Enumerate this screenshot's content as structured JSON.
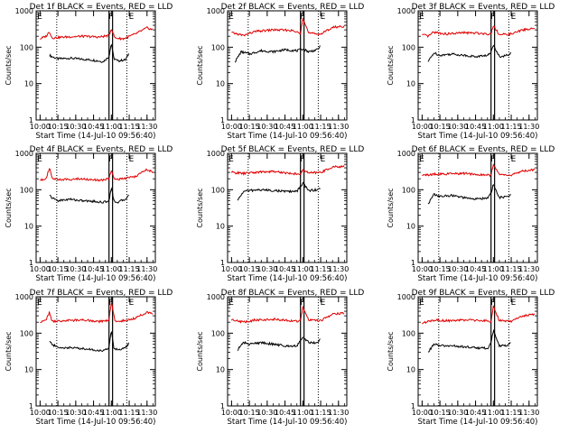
{
  "figure": {
    "panel_title_suffix": "BLACK = Events, RED = LLD",
    "xlabel": "Start Time (14-Jul-10 09:56:40)",
    "ylabel": "Counts/sec",
    "x_tick_labels": [
      "10:00",
      "10:15",
      "10:30",
      "10:45",
      "11:00",
      "11:15",
      "11:30"
    ],
    "y_tick_labels": [
      "1",
      "10",
      "100",
      "1000"
    ],
    "region_marker_labels": [
      "F",
      "F",
      "E"
    ],
    "colors": {
      "events": "#000000",
      "lld": "#e00000",
      "axes": "#000000"
    }
  },
  "chart_data": [
    {
      "type": "line",
      "title": "Det 1f BLACK = Events, RED = LLD",
      "xlabel": "Start Time (14-Jul-10 09:56:40)",
      "ylabel": "Counts/sec",
      "y_scale": "log",
      "ylim": [
        1,
        1000
      ],
      "xlim": [
        "09:56:40",
        "11:37:00"
      ],
      "series": [
        {
          "name": "Events",
          "color": "#000000",
          "x": [
            "10:08",
            "10:10",
            "10:15",
            "10:25",
            "10:35",
            "10:45",
            "10:53",
            "10:58",
            "11:00",
            "11:02",
            "11:05",
            "11:12",
            "11:15"
          ],
          "y": [
            60,
            55,
            48,
            50,
            47,
            44,
            40,
            55,
            130,
            50,
            42,
            45,
            70
          ]
        },
        {
          "name": "LLD",
          "color": "#e00000",
          "x": [
            "10:00",
            "10:05",
            "10:08",
            "10:10",
            "10:20",
            "10:35",
            "10:50",
            "10:58",
            "11:00",
            "11:03",
            "11:10",
            "11:20",
            "11:30",
            "11:35"
          ],
          "y": [
            170,
            200,
            270,
            180,
            190,
            200,
            190,
            210,
            320,
            180,
            170,
            230,
            340,
            300
          ]
        }
      ],
      "markers": [
        {
          "label": "F",
          "x": [
            "10:58",
            "11:01"
          ]
        },
        {
          "label": "E",
          "x": [
            "10:14",
            "11:13"
          ]
        }
      ]
    },
    {
      "type": "line",
      "title": "Det 2f BLACK = Events, RED = LLD",
      "xlabel": "Start Time (14-Jul-10 09:56:40)",
      "ylabel": "Counts/sec",
      "y_scale": "log",
      "ylim": [
        1,
        1000
      ],
      "xlim": [
        "09:56:40",
        "11:37:00"
      ],
      "series": [
        {
          "name": "Events",
          "color": "#000000",
          "x": [
            "10:03",
            "10:08",
            "10:15",
            "10:25",
            "10:35",
            "10:45",
            "10:55",
            "11:00",
            "11:05",
            "11:12",
            "11:15"
          ],
          "y": [
            40,
            75,
            65,
            80,
            75,
            85,
            80,
            90,
            75,
            85,
            110
          ]
        },
        {
          "name": "LLD",
          "color": "#e00000",
          "x": [
            "10:00",
            "10:05",
            "10:10",
            "10:20",
            "10:35",
            "10:50",
            "10:58",
            "11:00",
            "11:05",
            "11:15",
            "11:25",
            "11:35"
          ],
          "y": [
            250,
            230,
            210,
            270,
            300,
            290,
            240,
            650,
            240,
            230,
            350,
            380
          ]
        }
      ],
      "markers": [
        {
          "label": "F",
          "x": [
            "10:58",
            "11:01"
          ]
        },
        {
          "label": "E",
          "x": [
            "10:14",
            "11:13"
          ]
        }
      ]
    },
    {
      "type": "line",
      "title": "Det 3f BLACK = Events, RED = LLD",
      "xlabel": "Start Time (14-Jul-10 09:56:40)",
      "ylabel": "Counts/sec",
      "y_scale": "log",
      "ylim": [
        1,
        1000
      ],
      "xlim": [
        "09:56:40",
        "11:37:00"
      ],
      "series": [
        {
          "name": "Events",
          "color": "#000000",
          "x": [
            "10:05",
            "10:10",
            "10:15",
            "10:25",
            "10:35",
            "10:45",
            "10:55",
            "10:58",
            "11:00",
            "11:05",
            "11:12",
            "11:15"
          ],
          "y": [
            40,
            70,
            60,
            65,
            60,
            55,
            60,
            70,
            120,
            55,
            60,
            70
          ]
        },
        {
          "name": "LLD",
          "color": "#e00000",
          "x": [
            "10:00",
            "10:05",
            "10:10",
            "10:20",
            "10:35",
            "10:50",
            "10:58",
            "11:00",
            "11:05",
            "11:15",
            "11:25",
            "11:35"
          ],
          "y": [
            220,
            200,
            260,
            230,
            250,
            240,
            230,
            400,
            220,
            230,
            300,
            330
          ]
        }
      ],
      "markers": [
        {
          "label": "F",
          "x": [
            "10:58",
            "11:01"
          ]
        },
        {
          "label": "E",
          "x": [
            "10:14",
            "11:13"
          ]
        }
      ]
    },
    {
      "type": "line",
      "title": "Det 4f BLACK = Events, RED = LLD",
      "xlabel": "Start Time (14-Jul-10 09:56:40)",
      "ylabel": "Counts/sec",
      "y_scale": "log",
      "ylim": [
        1,
        1000
      ],
      "xlim": [
        "09:56:40",
        "11:37:00"
      ],
      "series": [
        {
          "name": "Events",
          "color": "#000000",
          "x": [
            "10:08",
            "10:10",
            "10:15",
            "10:25",
            "10:35",
            "10:45",
            "10:53",
            "10:58",
            "11:00",
            "11:02",
            "11:05",
            "11:12",
            "11:15"
          ],
          "y": [
            70,
            60,
            50,
            55,
            50,
            48,
            45,
            50,
            120,
            50,
            45,
            55,
            80
          ]
        },
        {
          "name": "LLD",
          "color": "#e00000",
          "x": [
            "10:00",
            "10:05",
            "10:08",
            "10:10",
            "10:20",
            "10:35",
            "10:50",
            "10:58",
            "11:00",
            "11:03",
            "11:10",
            "11:20",
            "11:30",
            "11:35"
          ],
          "y": [
            180,
            210,
            400,
            200,
            190,
            200,
            180,
            200,
            350,
            190,
            200,
            230,
            360,
            300
          ]
        }
      ],
      "markers": [
        {
          "label": "F",
          "x": [
            "10:58",
            "11:01"
          ]
        },
        {
          "label": "E",
          "x": [
            "10:14",
            "11:13"
          ]
        }
      ]
    },
    {
      "type": "line",
      "title": "Det 5f BLACK = Events, RED = LLD",
      "xlabel": "Start Time (14-Jul-10 09:56:40)",
      "ylabel": "Counts/sec",
      "y_scale": "log",
      "ylim": [
        1,
        1000
      ],
      "xlim": [
        "09:56:40",
        "11:37:00"
      ],
      "series": [
        {
          "name": "Events",
          "color": "#000000",
          "x": [
            "10:05",
            "10:10",
            "10:15",
            "10:25",
            "10:35",
            "10:45",
            "10:55",
            "11:00",
            "11:05",
            "11:12",
            "11:15"
          ],
          "y": [
            50,
            90,
            95,
            100,
            95,
            90,
            90,
            150,
            95,
            100,
            110
          ]
        },
        {
          "name": "LLD",
          "color": "#e00000",
          "x": [
            "10:00",
            "10:05",
            "10:10",
            "10:20",
            "10:35",
            "10:50",
            "10:58",
            "11:00",
            "11:05",
            "11:15",
            "11:25",
            "11:35"
          ],
          "y": [
            300,
            290,
            280,
            300,
            320,
            280,
            270,
            350,
            290,
            300,
            420,
            440
          ]
        }
      ],
      "markers": [
        {
          "label": "F",
          "x": [
            "10:58",
            "11:01"
          ]
        },
        {
          "label": "E",
          "x": [
            "10:14",
            "11:13"
          ]
        }
      ]
    },
    {
      "type": "line",
      "title": "Det 6f BLACK = Events, RED = LLD",
      "xlabel": "Start Time (14-Jul-10 09:56:40)",
      "ylabel": "Counts/sec",
      "y_scale": "log",
      "ylim": [
        1,
        1000
      ],
      "xlim": [
        "09:56:40",
        "11:37:00"
      ],
      "series": [
        {
          "name": "Events",
          "color": "#000000",
          "x": [
            "10:05",
            "10:10",
            "10:15",
            "10:25",
            "10:35",
            "10:45",
            "10:55",
            "10:58",
            "11:00",
            "11:05",
            "11:12",
            "11:15"
          ],
          "y": [
            40,
            75,
            65,
            70,
            60,
            55,
            60,
            80,
            140,
            60,
            65,
            75
          ]
        },
        {
          "name": "LLD",
          "color": "#e00000",
          "x": [
            "10:00",
            "10:05",
            "10:10",
            "10:20",
            "10:35",
            "10:50",
            "10:58",
            "11:00",
            "11:05",
            "11:15",
            "11:25",
            "11:35"
          ],
          "y": [
            260,
            250,
            270,
            270,
            280,
            260,
            250,
            500,
            260,
            250,
            330,
            360
          ]
        }
      ],
      "markers": [
        {
          "label": "F",
          "x": [
            "10:58",
            "11:01"
          ]
        },
        {
          "label": "E",
          "x": [
            "10:14",
            "11:13"
          ]
        }
      ]
    },
    {
      "type": "line",
      "title": "Det 7f BLACK = Events, RED = LLD",
      "xlabel": "Start Time (14-Jul-10 09:56:40)",
      "ylabel": "Counts/sec",
      "y_scale": "log",
      "ylim": [
        1,
        1000
      ],
      "xlim": [
        "09:56:40",
        "11:37:00"
      ],
      "series": [
        {
          "name": "Events",
          "color": "#000000",
          "x": [
            "10:08",
            "10:10",
            "10:15",
            "10:25",
            "10:35",
            "10:45",
            "10:53",
            "10:58",
            "11:00",
            "11:02",
            "11:05",
            "11:12",
            "11:15"
          ],
          "y": [
            60,
            50,
            40,
            40,
            38,
            35,
            32,
            40,
            120,
            40,
            35,
            40,
            55
          ]
        },
        {
          "name": "LLD",
          "color": "#e00000",
          "x": [
            "10:00",
            "10:05",
            "10:08",
            "10:10",
            "10:20",
            "10:35",
            "10:50",
            "10:58",
            "11:00",
            "11:03",
            "11:10",
            "11:20",
            "11:30",
            "11:35"
          ],
          "y": [
            200,
            230,
            380,
            210,
            220,
            230,
            210,
            230,
            700,
            210,
            220,
            260,
            380,
            350
          ]
        }
      ],
      "markers": [
        {
          "label": "F",
          "x": [
            "10:58",
            "11:01"
          ]
        },
        {
          "label": "E",
          "x": [
            "10:14",
            "11:13"
          ]
        }
      ]
    },
    {
      "type": "line",
      "title": "Det 8f BLACK = Events, RED = LLD",
      "xlabel": "Start Time (14-Jul-10 09:56:40)",
      "ylabel": "Counts/sec",
      "y_scale": "log",
      "ylim": [
        1,
        1000
      ],
      "xlim": [
        "09:56:40",
        "11:37:00"
      ],
      "series": [
        {
          "name": "Events",
          "color": "#000000",
          "x": [
            "10:05",
            "10:10",
            "10:15",
            "10:25",
            "10:35",
            "10:45",
            "10:55",
            "11:00",
            "11:05",
            "11:12",
            "11:15"
          ],
          "y": [
            35,
            55,
            50,
            55,
            50,
            45,
            45,
            80,
            55,
            55,
            70
          ]
        },
        {
          "name": "LLD",
          "color": "#e00000",
          "x": [
            "10:00",
            "10:05",
            "10:10",
            "10:20",
            "10:35",
            "10:50",
            "10:58",
            "11:00",
            "11:05",
            "11:15",
            "11:25",
            "11:35"
          ],
          "y": [
            240,
            220,
            200,
            230,
            240,
            220,
            210,
            500,
            230,
            220,
            330,
            360
          ]
        }
      ],
      "markers": [
        {
          "label": "F",
          "x": [
            "10:58",
            "11:01"
          ]
        },
        {
          "label": "E",
          "x": [
            "10:14",
            "11:13"
          ]
        }
      ]
    },
    {
      "type": "line",
      "title": "Det 9f BLACK = Events, RED = LLD",
      "xlabel": "Start Time (14-Jul-10 09:56:40)",
      "ylabel": "Counts/sec",
      "y_scale": "log",
      "ylim": [
        1,
        1000
      ],
      "xlim": [
        "09:56:40",
        "11:37:00"
      ],
      "series": [
        {
          "name": "Events",
          "color": "#000000",
          "x": [
            "10:05",
            "10:10",
            "10:15",
            "10:25",
            "10:35",
            "10:45",
            "10:55",
            "10:58",
            "11:00",
            "11:05",
            "11:12",
            "11:15"
          ],
          "y": [
            30,
            50,
            45,
            45,
            42,
            40,
            38,
            55,
            120,
            45,
            45,
            60
          ]
        },
        {
          "name": "LLD",
          "color": "#e00000",
          "x": [
            "10:00",
            "10:05",
            "10:10",
            "10:20",
            "10:35",
            "10:50",
            "10:58",
            "11:00",
            "11:05",
            "11:15",
            "11:25",
            "11:35"
          ],
          "y": [
            190,
            210,
            230,
            220,
            230,
            220,
            210,
            560,
            220,
            210,
            300,
            330
          ]
        }
      ],
      "markers": [
        {
          "label": "F",
          "x": [
            "10:58",
            "11:01"
          ]
        },
        {
          "label": "E",
          "x": [
            "10:14",
            "11:13"
          ]
        }
      ]
    }
  ]
}
